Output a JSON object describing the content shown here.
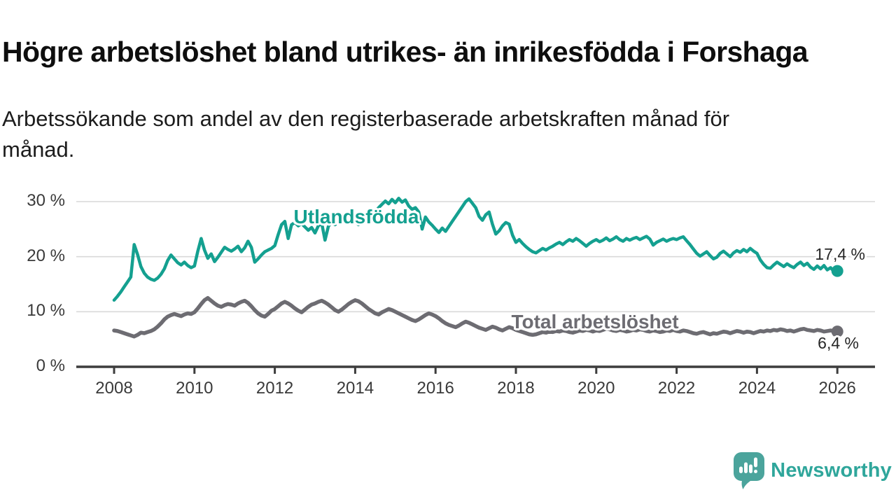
{
  "header": {
    "title": "Högre arbetslöshet bland utrikes- än inrikesfödda i Forshaga",
    "subtitle_lines": [
      "Arbetssökande som andel av den registerbaserade arbetskraften månad för",
      "månad."
    ]
  },
  "chart_data": {
    "type": "line",
    "title": "Högre arbetslöshet bland utrikes- än inrikesfödda i Forshaga",
    "subtitle": "Arbetssökande som andel av den registerbaserade arbetskraften månad för månad.",
    "x_unit": "year-month",
    "x_start": 2008.0,
    "x_step": 0.0833,
    "xlim": [
      2007.1,
      2026.95
    ],
    "ylim": [
      0,
      33
    ],
    "grid": "horizontal",
    "legend_position": "inline-labels",
    "colors": {
      "grid": "#d9d9d9",
      "axis": "#3d3d3d",
      "tick_label": "#3a3a3a"
    },
    "x_ticks": [
      {
        "value": 2008,
        "label": "2008"
      },
      {
        "value": 2010,
        "label": "2010"
      },
      {
        "value": 2012,
        "label": "2012"
      },
      {
        "value": 2014,
        "label": "2014"
      },
      {
        "value": 2016,
        "label": "2016"
      },
      {
        "value": 2018,
        "label": "2018"
      },
      {
        "value": 2020,
        "label": "2020"
      },
      {
        "value": 2022,
        "label": "2022"
      },
      {
        "value": 2024,
        "label": "2024"
      },
      {
        "value": 2026,
        "label": "2026"
      }
    ],
    "y_ticks": [
      {
        "value": 30,
        "label": "30 %"
      },
      {
        "value": 20,
        "label": "20 %"
      },
      {
        "value": 10,
        "label": "10 %"
      },
      {
        "value": 0,
        "label": "0 %"
      }
    ],
    "series": [
      {
        "name": "Utlandsfödda",
        "color": "#14a090",
        "end_label": "17,4 %",
        "end_value": 17.4,
        "values": [
          12.1,
          12.8,
          13.6,
          14.5,
          15.4,
          16.3,
          22.2,
          20.4,
          18.2,
          17.0,
          16.3,
          15.9,
          15.7,
          16.1,
          16.8,
          17.8,
          19.3,
          20.3,
          19.6,
          18.9,
          18.5,
          19.0,
          18.4,
          18.0,
          18.3,
          21.0,
          23.3,
          21.2,
          19.7,
          20.5,
          19.1,
          19.9,
          20.8,
          21.7,
          21.3,
          21.0,
          21.4,
          21.9,
          20.9,
          21.6,
          22.8,
          21.7,
          19.0,
          19.6,
          20.3,
          20.9,
          21.2,
          21.5,
          22.0,
          24.0,
          25.8,
          26.4,
          23.3,
          25.8,
          26.2,
          25.6,
          26.0,
          25.4,
          24.8,
          25.3,
          24.3,
          25.6,
          26.1,
          23.0,
          25.5,
          26.3,
          25.8,
          26.9,
          27.2,
          26.6,
          26.1,
          26.8,
          26.3,
          25.8,
          26.7,
          27.3,
          26.9,
          27.6,
          28.2,
          28.9,
          29.5,
          30.1,
          29.6,
          30.4,
          29.8,
          30.6,
          29.9,
          30.3,
          29.2,
          28.6,
          28.9,
          28.1,
          25.0,
          27.2,
          26.3,
          25.7,
          25.0,
          24.4,
          25.2,
          24.6,
          25.5,
          26.4,
          27.3,
          28.2,
          29.1,
          30.0,
          30.5,
          29.7,
          28.9,
          27.3,
          26.6,
          27.6,
          28.1,
          25.9,
          24.1,
          24.7,
          25.6,
          26.2,
          25.9,
          23.9,
          22.6,
          23.1,
          22.4,
          21.8,
          21.3,
          20.9,
          20.7,
          21.1,
          21.5,
          21.2,
          21.6,
          21.9,
          22.3,
          22.6,
          22.2,
          22.7,
          23.1,
          22.8,
          23.3,
          22.9,
          22.4,
          21.9,
          22.4,
          22.8,
          23.1,
          22.7,
          23.0,
          23.4,
          22.9,
          23.2,
          23.6,
          23.1,
          22.8,
          23.3,
          23.0,
          23.3,
          23.5,
          23.1,
          23.4,
          23.7,
          23.2,
          22.1,
          22.6,
          22.9,
          23.2,
          22.8,
          23.1,
          23.3,
          23.1,
          23.4,
          23.6,
          22.9,
          22.2,
          21.4,
          20.6,
          20.1,
          20.5,
          20.9,
          20.2,
          19.6,
          19.9,
          20.6,
          21.0,
          20.5,
          20.0,
          20.7,
          21.1,
          20.8,
          21.3,
          20.9,
          21.5,
          21.0,
          20.6,
          19.4,
          18.6,
          18.0,
          17.9,
          18.5,
          19.0,
          18.6,
          18.2,
          18.7,
          18.3,
          18.0,
          18.6,
          19.0,
          18.4,
          18.8,
          18.1,
          17.7,
          18.3,
          17.8,
          18.4,
          17.6,
          18.0,
          17.3,
          17.4
        ]
      },
      {
        "name": "Total arbetslöshet",
        "color": "#6d6c72",
        "end_label": "6,4 %",
        "end_value": 6.4,
        "values": [
          6.6,
          6.5,
          6.3,
          6.1,
          5.9,
          5.7,
          5.5,
          5.8,
          6.2,
          6.1,
          6.3,
          6.5,
          6.8,
          7.3,
          7.9,
          8.6,
          9.1,
          9.4,
          9.6,
          9.4,
          9.2,
          9.5,
          9.7,
          9.6,
          9.9,
          10.6,
          11.4,
          12.1,
          12.5,
          12.0,
          11.5,
          11.1,
          10.9,
          11.2,
          11.4,
          11.3,
          11.1,
          11.5,
          11.8,
          12.0,
          11.6,
          11.0,
          10.3,
          9.7,
          9.3,
          9.1,
          9.6,
          10.2,
          10.5,
          11.0,
          11.5,
          11.8,
          11.5,
          11.1,
          10.6,
          10.2,
          9.9,
          10.4,
          10.9,
          11.3,
          11.5,
          11.8,
          12.0,
          11.7,
          11.3,
          10.8,
          10.3,
          10.0,
          10.4,
          10.9,
          11.4,
          11.8,
          12.1,
          11.9,
          11.5,
          11.0,
          10.5,
          10.1,
          9.7,
          9.5,
          9.9,
          10.2,
          10.5,
          10.3,
          10.0,
          9.7,
          9.4,
          9.1,
          8.8,
          8.5,
          8.3,
          8.6,
          9.0,
          9.4,
          9.7,
          9.5,
          9.2,
          8.8,
          8.3,
          7.9,
          7.6,
          7.4,
          7.2,
          7.5,
          7.9,
          8.2,
          8.0,
          7.7,
          7.4,
          7.1,
          6.9,
          6.7,
          7.0,
          7.3,
          7.1,
          6.8,
          6.6,
          6.9,
          7.2,
          7.0,
          6.7,
          6.5,
          6.3,
          6.1,
          5.9,
          5.8,
          5.9,
          6.1,
          6.3,
          6.2,
          6.4,
          6.3,
          6.5,
          6.4,
          6.6,
          6.5,
          6.3,
          6.2,
          6.4,
          6.6,
          6.5,
          6.7,
          6.6,
          6.4,
          6.6,
          6.5,
          6.7,
          6.9,
          6.8,
          6.6,
          6.5,
          6.7,
          6.6,
          6.4,
          6.5,
          6.7,
          6.6,
          6.8,
          6.7,
          6.5,
          6.4,
          6.6,
          6.5,
          6.3,
          6.4,
          6.6,
          6.5,
          6.7,
          6.5,
          6.4,
          6.6,
          6.5,
          6.3,
          6.1,
          6.0,
          6.2,
          6.3,
          6.1,
          5.9,
          6.1,
          6.0,
          6.2,
          6.4,
          6.3,
          6.1,
          6.3,
          6.5,
          6.4,
          6.2,
          6.4,
          6.3,
          6.1,
          6.3,
          6.5,
          6.4,
          6.6,
          6.5,
          6.7,
          6.6,
          6.8,
          6.7,
          6.5,
          6.6,
          6.4,
          6.6,
          6.8,
          6.9,
          6.7,
          6.6,
          6.5,
          6.7,
          6.6,
          6.4,
          6.5,
          6.6,
          6.5,
          6.4
        ]
      }
    ]
  },
  "footer": {
    "brand": "Newsworthy",
    "brand_color": "#2fa69b",
    "icon": "newsworthy-speech-bubble-bar-chart",
    "icon_color": "#4ba49c"
  }
}
